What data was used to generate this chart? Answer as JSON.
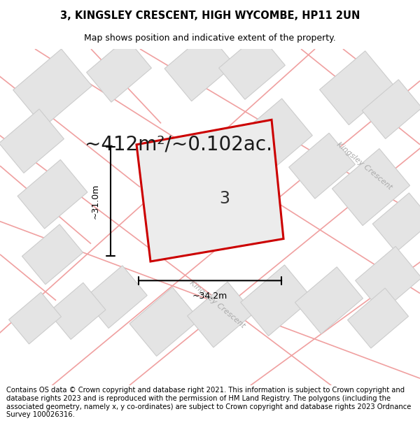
{
  "title": "3, KINGSLEY CRESCENT, HIGH WYCOMBE, HP11 2UN",
  "subtitle": "Map shows position and indicative extent of the property.",
  "area_text": "~412m²/~0.102ac.",
  "plot_label": "3",
  "dim_h": "~31.0m",
  "dim_w": "~34.2m",
  "road_label_bottom": "Kingsley Crescent",
  "road_label_right": "Kingsley Crescent",
  "footer": "Contains OS data © Crown copyright and database right 2021. This information is subject to Crown copyright and database rights 2023 and is reproduced with the permission of HM Land Registry. The polygons (including the associated geometry, namely x, y co-ordinates) are subject to Crown copyright and database rights 2023 Ordnance Survey 100026316.",
  "map_bg": "#f7f7f7",
  "plot_fill": "#e4e4e4",
  "plot_edge": "#cccccc",
  "road_color": "#f0a0a0",
  "red_outline": "#cc0000",
  "title_fontsize": 10.5,
  "subtitle_fontsize": 9,
  "area_fontsize": 20,
  "footer_fontsize": 7.2,
  "road_lw": 1.2
}
